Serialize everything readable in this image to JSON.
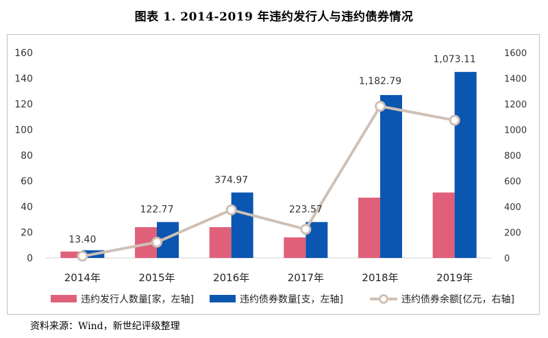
{
  "title": "图表 1. 2014-2019 年违约发行人与违约债券情况",
  "source": "资料来源：Wind，新世纪评级整理",
  "chart_data": {
    "type": "bar",
    "categories": [
      "2014年",
      "2015年",
      "2016年",
      "2017年",
      "2018年",
      "2019年"
    ],
    "series": [
      {
        "name": "违约发行人数量[家，左轴]",
        "type": "bar",
        "axis": "left",
        "color": "#e0607a",
        "values": [
          5,
          24,
          24,
          16,
          47,
          51
        ]
      },
      {
        "name": "违约债券数量[支，左轴]",
        "type": "bar",
        "axis": "left",
        "color": "#0b56b0",
        "values": [
          6,
          28,
          51,
          28,
          127,
          145
        ]
      },
      {
        "name": "违约债券余额[亿元，右轴]",
        "type": "line",
        "axis": "right",
        "color": "#cfc0b5",
        "values": [
          13.4,
          122.77,
          374.97,
          223.57,
          1182.79,
          1073.11
        ],
        "labels": [
          "13.40",
          "122.77",
          "374.97",
          "223.57",
          "1,182.79",
          "1,073.11"
        ]
      }
    ],
    "y_left": {
      "min": 0,
      "max": 160,
      "ticks": [
        "0",
        "20",
        "40",
        "60",
        "80",
        "100",
        "120",
        "140",
        "160"
      ]
    },
    "y_right": {
      "min": 0,
      "max": 1600,
      "ticks": [
        "0",
        "200",
        "400",
        "600",
        "800",
        "1000",
        "1200",
        "1400",
        "1600"
      ]
    },
    "grid": false,
    "legend_position": "bottom"
  }
}
